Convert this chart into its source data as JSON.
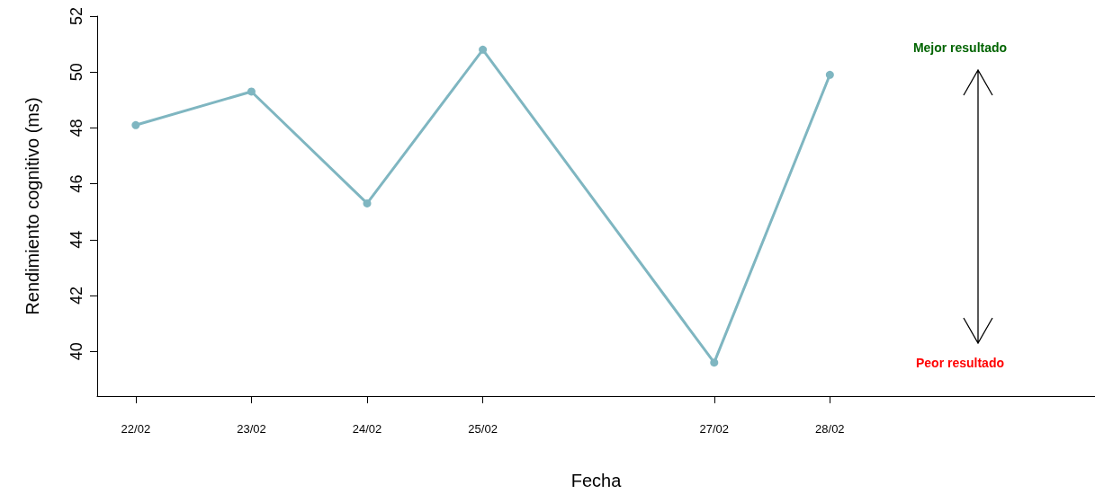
{
  "chart_data": {
    "type": "line",
    "xlabel": "Fecha",
    "ylabel": "Rendimiento cognitivo (ms)",
    "x": [
      "--02-22",
      "--02-23",
      "--02-24",
      "--02-25",
      "--02-27",
      "--02-28"
    ],
    "series": [
      {
        "color": "#7fb6c1",
        "values": [
          48.1,
          49.3,
          45.3,
          50.8,
          39.6,
          49.9
        ]
      }
    ],
    "xlim": [
      "--02-21T16:00",
      "--03-02T07:00"
    ],
    "xticks": [
      {
        "value": "--02-22",
        "label": "22/02"
      },
      {
        "value": "--02-23",
        "label": "23/02"
      },
      {
        "value": "--02-24",
        "label": "24/02"
      },
      {
        "value": "--02-25",
        "label": "25/02"
      },
      {
        "value": "--02-27",
        "label": "27/02"
      },
      {
        "value": "--02-28",
        "label": "28/02"
      }
    ],
    "ylim": [
      38.4,
      52
    ],
    "yticks": [
      40,
      42,
      44,
      46,
      48,
      50,
      52
    ],
    "marker": "circle",
    "line_style": "solid",
    "grid": false,
    "annotations": [
      "Mejor resultado",
      "Peor resultado"
    ]
  }
}
